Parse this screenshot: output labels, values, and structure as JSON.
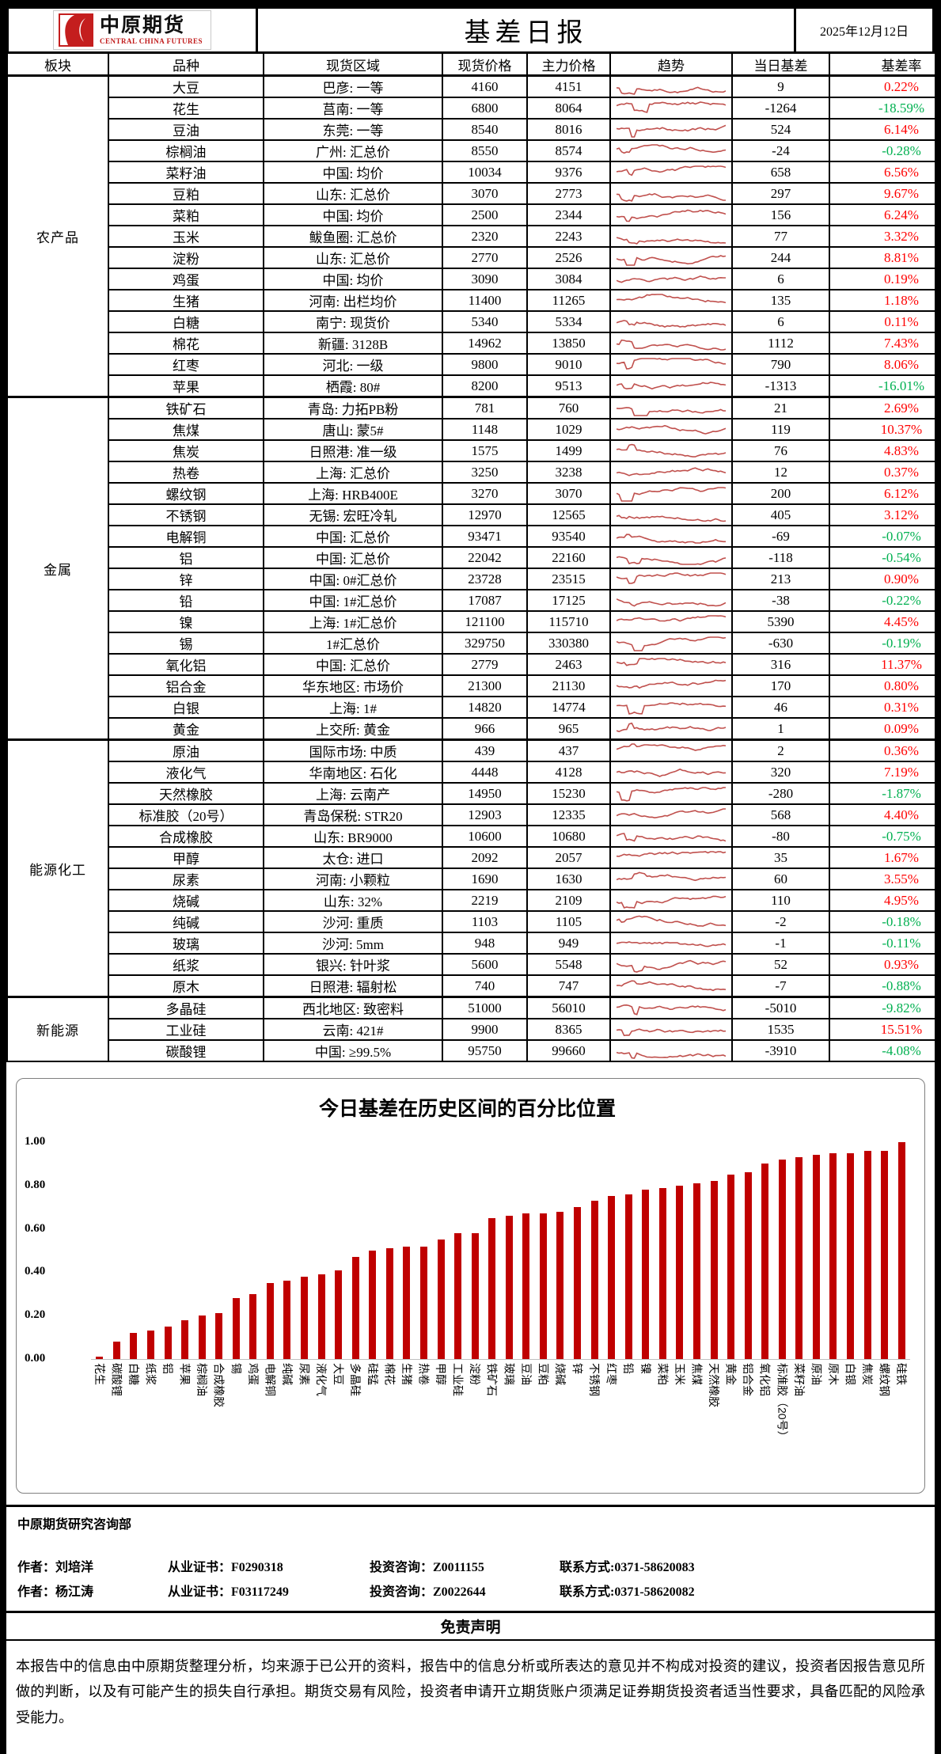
{
  "header": {
    "logo_cn": "中原期货",
    "logo_en": "CENTRAL CHINA FUTURES",
    "title": "基差日报",
    "date": "2025年12月12日"
  },
  "colors": {
    "positive_rate": "#FF0000",
    "negative_rate": "#00B050",
    "sparkline": "#C0504D",
    "bar": "#C00000"
  },
  "table": {
    "columns": [
      "板块",
      "品种",
      "现货区域",
      "现货价格",
      "主力价格",
      "趋势",
      "当日基差",
      "基差率"
    ],
    "sections": [
      {
        "sector": "农产品",
        "rows": [
          {
            "name": "大豆",
            "region": "巴彦: 一等",
            "spot": "4160",
            "main": "4151",
            "basis": "9",
            "rate": "0.22%"
          },
          {
            "name": "花生",
            "region": "莒南: 一等",
            "spot": "6800",
            "main": "8064",
            "basis": "-1264",
            "rate": "-18.59%"
          },
          {
            "name": "豆油",
            "region": "东莞: 一等",
            "spot": "8540",
            "main": "8016",
            "basis": "524",
            "rate": "6.14%"
          },
          {
            "name": "棕榈油",
            "region": "广州: 汇总价",
            "spot": "8550",
            "main": "8574",
            "basis": "-24",
            "rate": "-0.28%"
          },
          {
            "name": "菜籽油",
            "region": "中国: 均价",
            "spot": "10034",
            "main": "9376",
            "basis": "658",
            "rate": "6.56%"
          },
          {
            "name": "豆粕",
            "region": "山东: 汇总价",
            "spot": "3070",
            "main": "2773",
            "basis": "297",
            "rate": "9.67%"
          },
          {
            "name": "菜粕",
            "region": "中国: 均价",
            "spot": "2500",
            "main": "2344",
            "basis": "156",
            "rate": "6.24%"
          },
          {
            "name": "玉米",
            "region": "鲅鱼圈: 汇总价",
            "spot": "2320",
            "main": "2243",
            "basis": "77",
            "rate": "3.32%"
          },
          {
            "name": "淀粉",
            "region": "山东: 汇总价",
            "spot": "2770",
            "main": "2526",
            "basis": "244",
            "rate": "8.81%"
          },
          {
            "name": "鸡蛋",
            "region": "中国: 均价",
            "spot": "3090",
            "main": "3084",
            "basis": "6",
            "rate": "0.19%"
          },
          {
            "name": "生猪",
            "region": "河南: 出栏均价",
            "spot": "11400",
            "main": "11265",
            "basis": "135",
            "rate": "1.18%"
          },
          {
            "name": "白糖",
            "region": "南宁: 现货价",
            "spot": "5340",
            "main": "5334",
            "basis": "6",
            "rate": "0.11%"
          },
          {
            "name": "棉花",
            "region": "新疆: 3128B",
            "spot": "14962",
            "main": "13850",
            "basis": "1112",
            "rate": "7.43%"
          },
          {
            "name": "红枣",
            "region": "河北: 一级",
            "spot": "9800",
            "main": "9010",
            "basis": "790",
            "rate": "8.06%"
          },
          {
            "name": "苹果",
            "region": "栖霞: 80#",
            "spot": "8200",
            "main": "9513",
            "basis": "-1313",
            "rate": "-16.01%"
          }
        ]
      },
      {
        "sector": "金属",
        "rows": [
          {
            "name": "铁矿石",
            "region": "青岛: 力拓PB粉",
            "spot": "781",
            "main": "760",
            "basis": "21",
            "rate": "2.69%"
          },
          {
            "name": "焦煤",
            "region": "唐山: 蒙5#",
            "spot": "1148",
            "main": "1029",
            "basis": "119",
            "rate": "10.37%"
          },
          {
            "name": "焦炭",
            "region": "日照港: 准一级",
            "spot": "1575",
            "main": "1499",
            "basis": "76",
            "rate": "4.83%"
          },
          {
            "name": "热卷",
            "region": "上海: 汇总价",
            "spot": "3250",
            "main": "3238",
            "basis": "12",
            "rate": "0.37%"
          },
          {
            "name": "螺纹钢",
            "region": "上海: HRB400E",
            "spot": "3270",
            "main": "3070",
            "basis": "200",
            "rate": "6.12%"
          },
          {
            "name": "不锈钢",
            "region": "无锡: 宏旺冷轧",
            "spot": "12970",
            "main": "12565",
            "basis": "405",
            "rate": "3.12%"
          },
          {
            "name": "电解铜",
            "region": "中国: 汇总价",
            "spot": "93471",
            "main": "93540",
            "basis": "-69",
            "rate": "-0.07%"
          },
          {
            "name": "铝",
            "region": "中国: 汇总价",
            "spot": "22042",
            "main": "22160",
            "basis": "-118",
            "rate": "-0.54%"
          },
          {
            "name": "锌",
            "region": "中国: 0#汇总价",
            "spot": "23728",
            "main": "23515",
            "basis": "213",
            "rate": "0.90%"
          },
          {
            "name": "铅",
            "region": "中国: 1#汇总价",
            "spot": "17087",
            "main": "17125",
            "basis": "-38",
            "rate": "-0.22%"
          },
          {
            "name": "镍",
            "region": "上海: 1#汇总价",
            "spot": "121100",
            "main": "115710",
            "basis": "5390",
            "rate": "4.45%"
          },
          {
            "name": "锡",
            "region": "1#汇总价",
            "spot": "329750",
            "main": "330380",
            "basis": "-630",
            "rate": "-0.19%"
          },
          {
            "name": "氧化铝",
            "region": "中国: 汇总价",
            "spot": "2779",
            "main": "2463",
            "basis": "316",
            "rate": "11.37%"
          },
          {
            "name": "铝合金",
            "region": "华东地区: 市场价",
            "spot": "21300",
            "main": "21130",
            "basis": "170",
            "rate": "0.80%"
          },
          {
            "name": "白银",
            "region": "上海: 1#",
            "spot": "14820",
            "main": "14774",
            "basis": "46",
            "rate": "0.31%"
          },
          {
            "name": "黄金",
            "region": "上交所: 黄金",
            "spot": "966",
            "main": "965",
            "basis": "1",
            "rate": "0.09%"
          }
        ]
      },
      {
        "sector": "能源化工",
        "rows": [
          {
            "name": "原油",
            "region": "国际市场: 中质",
            "spot": "439",
            "main": "437",
            "basis": "2",
            "rate": "0.36%"
          },
          {
            "name": "液化气",
            "region": "华南地区: 石化",
            "spot": "4448",
            "main": "4128",
            "basis": "320",
            "rate": "7.19%"
          },
          {
            "name": "天然橡胶",
            "region": "上海: 云南产",
            "spot": "14950",
            "main": "15230",
            "basis": "-280",
            "rate": "-1.87%"
          },
          {
            "name": "标准胶（20号）",
            "region": "青岛保税: STR20",
            "spot": "12903",
            "main": "12335",
            "basis": "568",
            "rate": "4.40%"
          },
          {
            "name": "合成橡胶",
            "region": "山东: BR9000",
            "spot": "10600",
            "main": "10680",
            "basis": "-80",
            "rate": "-0.75%"
          },
          {
            "name": "甲醇",
            "region": "太仓: 进口",
            "spot": "2092",
            "main": "2057",
            "basis": "35",
            "rate": "1.67%"
          },
          {
            "name": "尿素",
            "region": "河南: 小颗粒",
            "spot": "1690",
            "main": "1630",
            "basis": "60",
            "rate": "3.55%"
          },
          {
            "name": "烧碱",
            "region": "山东: 32%",
            "spot": "2219",
            "main": "2109",
            "basis": "110",
            "rate": "4.95%"
          },
          {
            "name": "纯碱",
            "region": "沙河: 重质",
            "spot": "1103",
            "main": "1105",
            "basis": "-2",
            "rate": "-0.18%"
          },
          {
            "name": "玻璃",
            "region": "沙河: 5mm",
            "spot": "948",
            "main": "949",
            "basis": "-1",
            "rate": "-0.11%"
          },
          {
            "name": "纸浆",
            "region": "银兴: 针叶浆",
            "spot": "5600",
            "main": "5548",
            "basis": "52",
            "rate": "0.93%"
          },
          {
            "name": "原木",
            "region": "日照港: 辐射松",
            "spot": "740",
            "main": "747",
            "basis": "-7",
            "rate": "-0.88%"
          }
        ]
      },
      {
        "sector": "新能源",
        "rows": [
          {
            "name": "多晶硅",
            "region": "西北地区: 致密料",
            "spot": "51000",
            "main": "56010",
            "basis": "-5010",
            "rate": "-9.82%"
          },
          {
            "name": "工业硅",
            "region": "云南: 421#",
            "spot": "9900",
            "main": "8365",
            "basis": "1535",
            "rate": "15.51%"
          },
          {
            "name": "碳酸锂",
            "region": "中国: ≥99.5%",
            "spot": "95750",
            "main": "99660",
            "basis": "-3910",
            "rate": "-4.08%"
          }
        ]
      }
    ]
  },
  "chart_data": {
    "type": "bar",
    "title": "今日基差在历史区间的百分比位置",
    "categories": [
      "花生",
      "碳酸锂",
      "白糖",
      "纸浆",
      "铝",
      "苹果",
      "棕榈油",
      "合成橡胶",
      "锡",
      "鸡蛋",
      "电解铜",
      "纯碱",
      "尿素",
      "液化气",
      "大豆",
      "多晶硅",
      "硅锰",
      "棉花",
      "生猪",
      "热卷",
      "甲醇",
      "工业硅",
      "淀粉",
      "铁矿石",
      "玻璃",
      "豆油",
      "豆粕",
      "烧碱",
      "锌",
      "不锈钢",
      "红枣",
      "铅",
      "镍",
      "菜粕",
      "玉米",
      "焦煤",
      "天然橡胶",
      "黄金",
      "铝合金",
      "氧化铝",
      "标准胶（20号）",
      "菜籽油",
      "原油",
      "原木",
      "白银",
      "焦炭",
      "螺纹钢",
      "硅铁"
    ],
    "values": [
      0.01,
      0.08,
      0.12,
      0.13,
      0.15,
      0.18,
      0.2,
      0.21,
      0.28,
      0.3,
      0.35,
      0.36,
      0.38,
      0.39,
      0.41,
      0.47,
      0.5,
      0.51,
      0.52,
      0.52,
      0.55,
      0.58,
      0.58,
      0.65,
      0.66,
      0.67,
      0.67,
      0.68,
      0.7,
      0.73,
      0.75,
      0.76,
      0.78,
      0.79,
      0.8,
      0.81,
      0.82,
      0.85,
      0.86,
      0.9,
      0.92,
      0.93,
      0.94,
      0.95,
      0.95,
      0.96,
      0.96,
      1.0
    ],
    "xlabel": "",
    "ylabel": "",
    "ylim": [
      0,
      1
    ],
    "yticks": [
      "0.00",
      "0.20",
      "0.40",
      "0.60",
      "0.80",
      "1.00"
    ],
    "grid": false,
    "legend": "none",
    "bar_color": "#C00000"
  },
  "footer": {
    "department": "中原期货研究咨询部",
    "authors": [
      {
        "author": "作者：刘培洋",
        "cert": "从业证书：F0290318",
        "advisory": "投资咨询：Z0011155",
        "contact": "联系方式:0371-58620083"
      },
      {
        "author": "作者：杨江涛",
        "cert": "从业证书：F03117249",
        "advisory": "投资咨询：Z0022644",
        "contact": "联系方式:0371-58620082"
      }
    ],
    "disclaimer_title": "免责声明",
    "disclaimer_text": "本报告中的信息由中原期货整理分析，均来源于已公开的资料，报告中的信息分析或所表达的意见并不构成对投资的建议，投资者因报告意见所做的判断，以及有可能产生的损失自行承担。期货交易有风险，投资者申请开立期货账户须满足证券期货投资者适当性要求，具备匹配的风险承受能力。"
  }
}
